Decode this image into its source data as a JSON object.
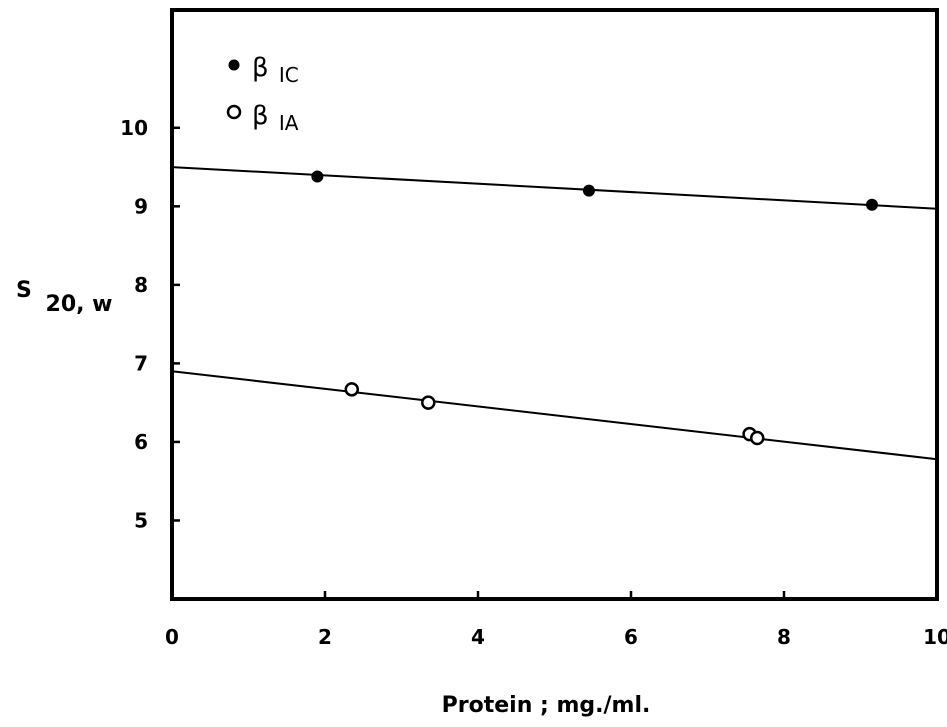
{
  "chart_data": {
    "type": "scatter",
    "xlabel": "Protein ; mg./ml.",
    "ylabel": {
      "main": "S",
      "subscript": "20, w"
    },
    "xlim": [
      0,
      10
    ],
    "ylim": [
      4,
      11.5
    ],
    "x_ticks": [
      0,
      2,
      4,
      6,
      8,
      10
    ],
    "y_ticks": [
      5,
      6,
      7,
      8,
      9,
      10
    ],
    "grid": false,
    "legend_position": "top-left",
    "series": [
      {
        "name": "β IC",
        "name_main": "β",
        "name_sub": "IC",
        "marker": "filled-circle",
        "points": [
          {
            "x": 1.9,
            "y": 9.38
          },
          {
            "x": 5.45,
            "y": 9.2
          },
          {
            "x": 9.15,
            "y": 9.02
          }
        ],
        "fit_line": {
          "x": [
            0,
            10
          ],
          "y": [
            9.5,
            8.97
          ]
        }
      },
      {
        "name": "β IA",
        "name_main": "β",
        "name_sub": "IA",
        "marker": "open-circle",
        "points": [
          {
            "x": 2.35,
            "y": 6.67
          },
          {
            "x": 3.35,
            "y": 6.5
          },
          {
            "x": 7.55,
            "y": 6.1
          },
          {
            "x": 7.65,
            "y": 6.05
          }
        ],
        "fit_line": {
          "x": [
            0,
            10
          ],
          "y": [
            6.9,
            5.78
          ]
        }
      }
    ]
  }
}
